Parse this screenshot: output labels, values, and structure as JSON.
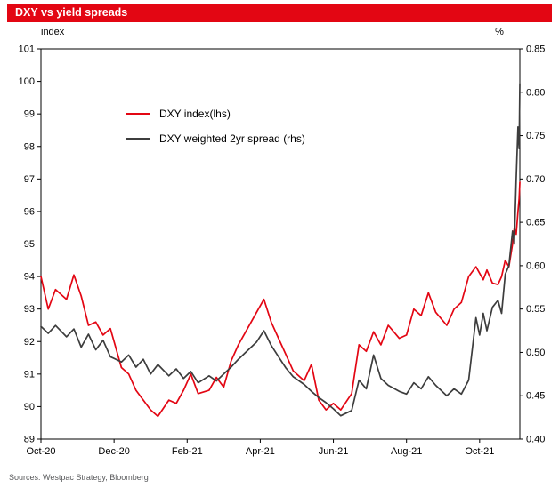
{
  "title": "DXY vs yield spreads",
  "source": "Sources: Westpac Strategy, Bloomberg",
  "colors": {
    "title_bar": "#e30613",
    "dxy_line": "#e30613",
    "spread_line": "#3d3d3d",
    "axis": "#000000"
  },
  "chart_data": {
    "type": "line",
    "title": "DXY vs yield spreads",
    "grid": false,
    "legend_position": "inside-top-left",
    "left_axis": {
      "unit": "index",
      "min": 89,
      "max": 101,
      "ticks": [
        101,
        100,
        99,
        98,
        97,
        96,
        95,
        94,
        93,
        92,
        91,
        90,
        89
      ],
      "tick_labels": [
        "101",
        "100",
        "99",
        "98",
        "97",
        "96",
        "95",
        "94",
        "93",
        "92",
        "91",
        "90",
        "89"
      ]
    },
    "right_axis": {
      "unit": "%",
      "min": 0.4,
      "max": 0.85,
      "ticks": [
        0.85,
        0.8,
        0.75,
        0.7,
        0.65,
        0.6,
        0.55,
        0.5,
        0.45,
        0.4
      ],
      "tick_labels": [
        "0.85",
        "0.80",
        "0.75",
        "0.70",
        "0.65",
        "0.60",
        "0.55",
        "0.50",
        "0.45",
        "0.40"
      ]
    },
    "x_axis": {
      "unit": "months since Oct-20",
      "min": 0,
      "max": 13.1,
      "ticks": [
        0,
        2,
        4,
        6,
        8,
        10,
        12
      ],
      "tick_labels": [
        "Oct-20",
        "Dec-20",
        "Feb-21",
        "Apr-21",
        "Jun-21",
        "Aug-21",
        "Oct-21"
      ]
    },
    "x": [
      0.0,
      0.2,
      0.4,
      0.7,
      0.9,
      1.1,
      1.3,
      1.5,
      1.7,
      1.9,
      2.2,
      2.4,
      2.6,
      2.8,
      3.0,
      3.2,
      3.5,
      3.7,
      3.9,
      4.1,
      4.3,
      4.6,
      4.8,
      5.0,
      5.2,
      5.4,
      5.6,
      5.9,
      6.1,
      6.3,
      6.5,
      6.7,
      6.9,
      7.2,
      7.4,
      7.6,
      7.8,
      8.0,
      8.2,
      8.5,
      8.7,
      8.9,
      9.1,
      9.3,
      9.5,
      9.8,
      10.0,
      10.2,
      10.4,
      10.6,
      10.8,
      11.1,
      11.3,
      11.5,
      11.7,
      11.9,
      12.0,
      12.1,
      12.2,
      12.35,
      12.5,
      12.6,
      12.7,
      12.8,
      12.9,
      12.95,
      13.0,
      13.05,
      13.08,
      13.1
    ],
    "series": [
      {
        "name": "DXY index(lhs)",
        "axis": "left",
        "color": "#e30613",
        "values": [
          94.0,
          93.0,
          93.6,
          93.3,
          94.05,
          93.4,
          92.5,
          92.6,
          92.2,
          92.4,
          91.2,
          91.0,
          90.5,
          90.2,
          89.9,
          89.7,
          90.2,
          90.1,
          90.5,
          91.0,
          90.4,
          90.5,
          90.9,
          90.6,
          91.4,
          91.9,
          92.3,
          92.9,
          93.3,
          92.6,
          92.1,
          91.6,
          91.1,
          90.8,
          91.3,
          90.2,
          89.9,
          90.1,
          89.9,
          90.4,
          91.9,
          91.7,
          92.3,
          91.9,
          92.5,
          92.1,
          92.2,
          93.0,
          92.8,
          93.5,
          92.9,
          92.5,
          93.0,
          93.2,
          94.0,
          94.3,
          94.1,
          93.9,
          94.2,
          93.8,
          93.75,
          94.0,
          94.5,
          94.3,
          95.0,
          95.5,
          95.3,
          96.0,
          96.4,
          96.9
        ]
      },
      {
        "name": "DXY weighted 2yr spread (rhs)",
        "axis": "right",
        "color": "#3d3d3d",
        "values": [
          0.53,
          0.522,
          0.531,
          0.518,
          0.527,
          0.506,
          0.521,
          0.503,
          0.514,
          0.495,
          0.489,
          0.497,
          0.483,
          0.492,
          0.475,
          0.486,
          0.473,
          0.481,
          0.47,
          0.478,
          0.465,
          0.473,
          0.467,
          0.475,
          0.483,
          0.492,
          0.5,
          0.512,
          0.525,
          0.508,
          0.495,
          0.482,
          0.472,
          0.463,
          0.455,
          0.448,
          0.442,
          0.435,
          0.427,
          0.433,
          0.468,
          0.458,
          0.497,
          0.47,
          0.462,
          0.455,
          0.452,
          0.465,
          0.458,
          0.472,
          0.462,
          0.45,
          0.458,
          0.452,
          0.468,
          0.54,
          0.52,
          0.545,
          0.525,
          0.552,
          0.56,
          0.545,
          0.59,
          0.6,
          0.64,
          0.625,
          0.7,
          0.76,
          0.735,
          0.81
        ]
      }
    ]
  }
}
